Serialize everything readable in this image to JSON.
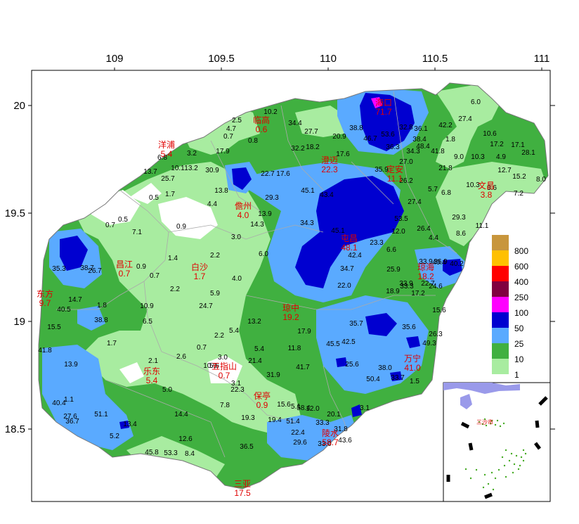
{
  "axes": {
    "x_ticks": [
      "109",
      "109.5",
      "110",
      "110.5",
      "111"
    ],
    "y_ticks": [
      "20",
      "19.5",
      "19",
      "18.5"
    ]
  },
  "legend": {
    "levels": [
      {
        "label": "800",
        "color": "#c8963c"
      },
      {
        "label": "600",
        "color": "#ffc000"
      },
      {
        "label": "400",
        "color": "#ff0000"
      },
      {
        "label": "250",
        "color": "#800040"
      },
      {
        "label": "100",
        "color": "#ff00ff"
      },
      {
        "label": "50",
        "color": "#0000d0"
      },
      {
        "label": "25",
        "color": "#5aaaff"
      },
      {
        "label": "10",
        "color": "#40b040"
      },
      {
        "label": "1",
        "color": "#a8eca0"
      }
    ]
  },
  "cities": [
    {
      "name": "海口",
      "value": "71.7"
    },
    {
      "name": "临高",
      "value": "0.6"
    },
    {
      "name": "澄迈",
      "value": "22.3"
    },
    {
      "name": "定安",
      "value": "11.1"
    },
    {
      "name": "文昌",
      "value": "3.8"
    },
    {
      "name": "洋浦",
      "value": "5.4"
    },
    {
      "name": "儋州",
      "value": "4.0"
    },
    {
      "name": "屯昌",
      "value": "48.1"
    },
    {
      "name": "琼海",
      "value": "18.2"
    },
    {
      "name": "昌江",
      "value": "0.7"
    },
    {
      "name": "白沙",
      "value": "1.7"
    },
    {
      "name": "东方",
      "value": "9.7"
    },
    {
      "name": "琼中",
      "value": "19.2"
    },
    {
      "name": "万宁",
      "value": "41.0"
    },
    {
      "name": "乐东",
      "value": "5.4"
    },
    {
      "name": "五指山",
      "value": "0.7"
    },
    {
      "name": "保亭",
      "value": "0.9"
    },
    {
      "name": "陵水",
      "value": "58.7"
    },
    {
      "name": "三亚",
      "value": "17.5"
    }
  ],
  "inset": {
    "label": "三沙市"
  },
  "stations": [
    "10.2",
    "34.4",
    "27.7",
    "20.9",
    "38.8",
    "32.8",
    "36.1",
    "42.2",
    "27.4",
    "6.0",
    "4.7",
    "0.7",
    "0.8",
    "2.5",
    "17.9",
    "32.2",
    "18.2",
    "17.6",
    "46.7",
    "53.6",
    "38.4",
    "36.3",
    "48.4",
    "41.8",
    "1.8",
    "9.0",
    "10.6",
    "17.2",
    "17.1",
    "28.1",
    "6.8",
    "3.2",
    "13.7",
    "10.1",
    "13.2",
    "30.9",
    "22.7",
    "17.6",
    "35.9",
    "34.3",
    "27.0",
    "21.8",
    "10.3",
    "4.9",
    "12.7",
    "15.2",
    "8.0",
    "25.7",
    "29.3",
    "45.1",
    "43.4",
    "26.2",
    "10.3",
    "8.6",
    "7.2",
    "0.5",
    "1.7",
    "4.4",
    "13.8",
    "13.9",
    "14.3",
    "27.4",
    "5.7",
    "6.8",
    "29.3",
    "0.5",
    "0.7",
    "7.1",
    "0.9",
    "34.3",
    "53.5",
    "12.0",
    "26.4",
    "11.1",
    "8.6",
    "3.0",
    "45.1",
    "23.3",
    "6.6",
    "4.4",
    "33.9",
    "36.9",
    "35.3",
    "38.7",
    "26.7",
    "1.4",
    "2.2",
    "0.9",
    "0.7",
    "6.0",
    "42.4",
    "34.7",
    "25.9",
    "33.9",
    "40.4",
    "40.2",
    "33.3",
    "22.7",
    "24.6",
    "18.9",
    "17.2",
    "2.2",
    "4.0",
    "22.0",
    "14.7",
    "5.9",
    "1.8",
    "10.9",
    "24.7",
    "40.5",
    "38.8",
    "15.6",
    "6.5",
    "35.7",
    "35.6",
    "26.3",
    "15.5",
    "5.4",
    "2.2",
    "13.2",
    "49.3",
    "45.5",
    "42.5",
    "17.9",
    "1.7",
    "2.6",
    "0.7",
    "5.4",
    "11.8",
    "41.8",
    "13.9",
    "2.1",
    "3.0",
    "21.4",
    "41.7",
    "25.6",
    "38.0",
    "1.5",
    "10.9",
    "5.6",
    "31.9",
    "50.4",
    "33.7",
    "40.4",
    "1.1",
    "5.0",
    "3.1",
    "22.3",
    "27.6",
    "36.7",
    "51.1",
    "13.4",
    "7.8",
    "15.6",
    "5.1",
    "58.4",
    "12.0",
    "3.1",
    "14.4",
    "19.3",
    "19.4",
    "51.4",
    "20.1",
    "5.2",
    "12.6",
    "22.4",
    "33.3",
    "31.8",
    "45.8",
    "53.3",
    "8.4",
    "36.5",
    "29.6",
    "33.0",
    "43.6"
  ]
}
